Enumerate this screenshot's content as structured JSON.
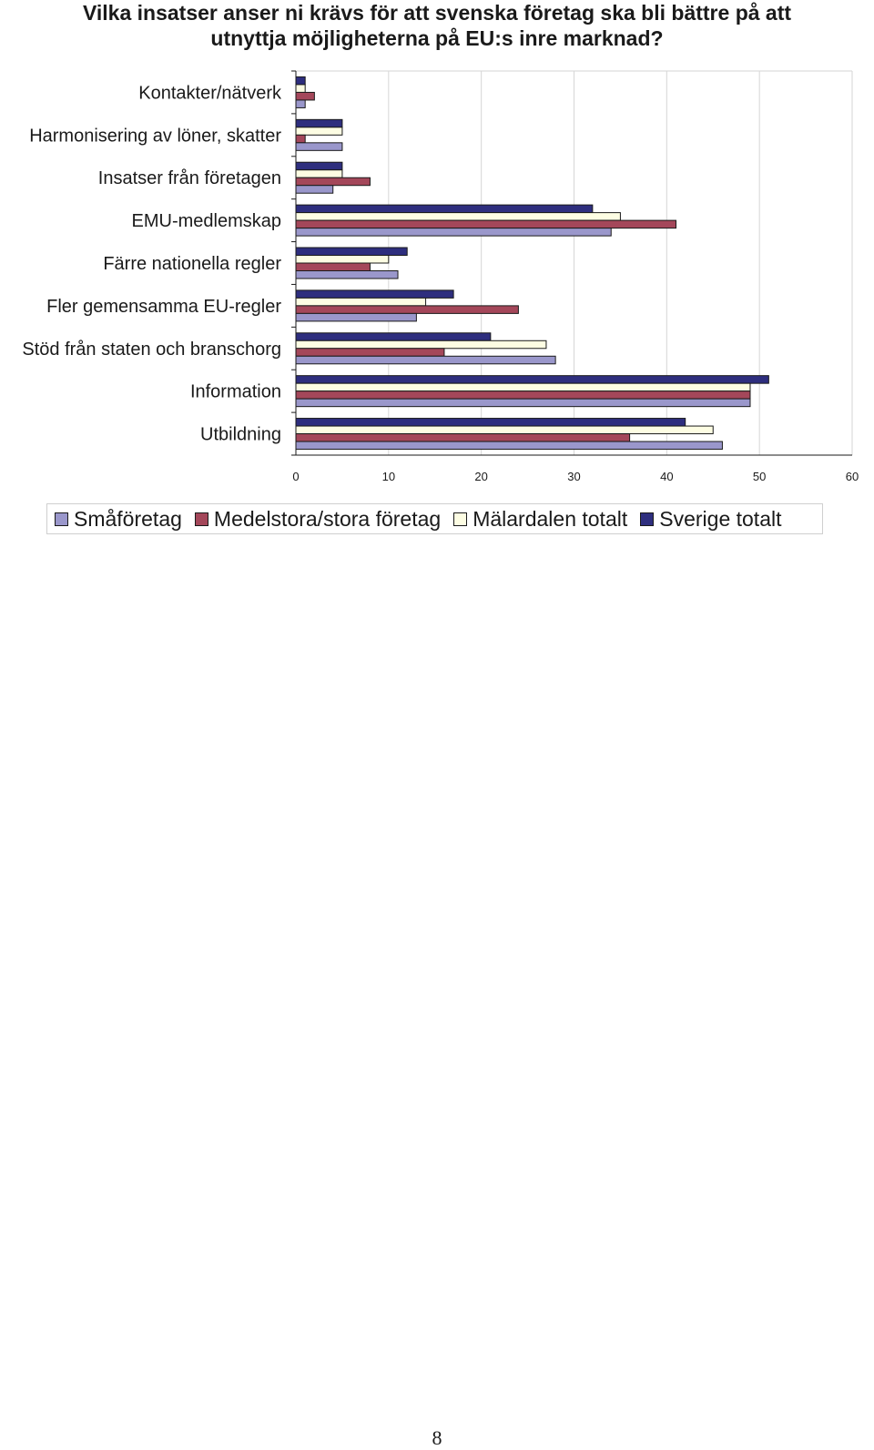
{
  "title_line1": "Vilka insatser anser ni krävs för att svenska företag ska bli bättre på att",
  "title_line2": "utnyttja möjligheterna på EU:s inre marknad?",
  "page_number": "8",
  "chart_data": {
    "type": "bar",
    "orientation": "horizontal",
    "title": "Vilka insatser anser ni krävs för att svenska företag ska bli bättre på att utnyttja möjligheterna på EU:s inre marknad?",
    "categories": [
      "Kontakter/nätverk",
      "Harmonisering av löner, skatter",
      "Insatser från företagen",
      "EMU-medlemskap",
      "Färre nationella regler",
      "Fler gemensamma EU-regler",
      "Stöd från staten och branschorg",
      "Information",
      "Utbildning"
    ],
    "series": [
      {
        "name": "Sverige totalt",
        "color": "#2e2e7e",
        "values": [
          1,
          5,
          5,
          32,
          12,
          17,
          21,
          51,
          42
        ]
      },
      {
        "name": "Mälardalen totalt",
        "color": "#fdfde3",
        "values": [
          1,
          5,
          5,
          35,
          10,
          14,
          27,
          49,
          45
        ]
      },
      {
        "name": "Medelstora/stora företag",
        "color": "#a4475a",
        "values": [
          2,
          1,
          8,
          41,
          8,
          24,
          16,
          49,
          36
        ]
      },
      {
        "name": "Småföretag",
        "color": "#9a97cb",
        "values": [
          1,
          5,
          4,
          34,
          11,
          13,
          28,
          49,
          46
        ]
      }
    ],
    "xlim": [
      0,
      60
    ],
    "xticks": [
      "0",
      "10",
      "20",
      "30",
      "40",
      "50",
      "60"
    ],
    "grid": true,
    "legend_order": [
      "Småföretag",
      "Medelstora/stora företag",
      "Mälardalen totalt",
      "Sverige totalt"
    ],
    "legend_colors": [
      "#9a97cb",
      "#a4475a",
      "#fdfde3",
      "#2e2e7e"
    ],
    "legend_position": "bottom"
  }
}
